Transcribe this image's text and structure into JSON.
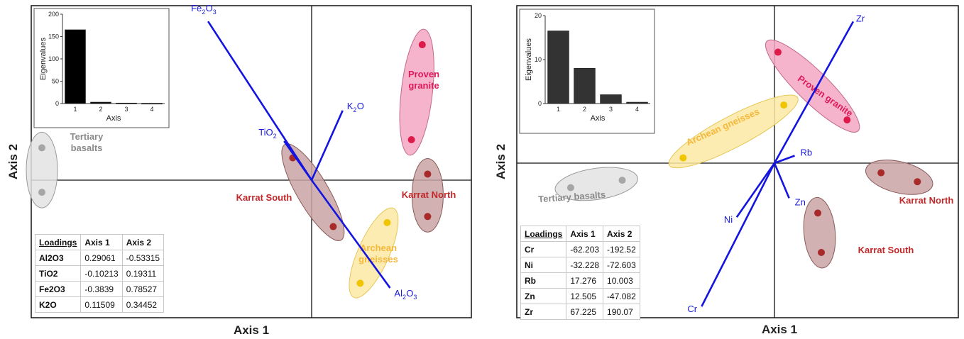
{
  "chart_data": [
    {
      "type": "scatter",
      "xlabel": "Axis 1",
      "ylabel": "Axis 2",
      "grid": false,
      "inset": {
        "type": "bar",
        "ylabel": "Eigenvalues",
        "xlabel": "Axis",
        "categories": [
          "1",
          "2",
          "3",
          "4"
        ],
        "values": [
          165,
          3,
          1,
          0.5
        ],
        "ylim": [
          0,
          200
        ],
        "yticks": [
          "0",
          "50",
          "100",
          "150",
          "200"
        ],
        "color": "#000000"
      },
      "vectors": [
        {
          "label": "Fe",
          "sub": "2",
          "label2": "O",
          "sub2": "3",
          "x": -0.3839,
          "y": 0.78527
        },
        {
          "label": "K",
          "sub": "2",
          "label2": "O",
          "sub2": "",
          "x": 0.11509,
          "y": 0.34452
        },
        {
          "label": "TiO",
          "sub": "2",
          "label2": "",
          "sub2": "",
          "x": -0.10213,
          "y": 0.19311
        },
        {
          "label": "Al",
          "sub": "2",
          "label2": "O",
          "sub2": "3",
          "x": 0.29061,
          "y": -0.53315
        }
      ],
      "groups": [
        {
          "name": "Tertiary basalts",
          "lines": [
            "Tertiary",
            "basalts"
          ],
          "fill": "#e3e3e3",
          "stroke": "#9a9a9a",
          "point": "#a6a6a6",
          "text": "#8a8a8a",
          "points": [
            [
              -1.0,
              0.16
            ],
            [
              -1.0,
              -0.06
            ]
          ]
        },
        {
          "name": "Karrat South",
          "lines": [
            "Karrat South"
          ],
          "fill": "#c9a3a3",
          "stroke": "#8a5a5a",
          "point": "#a82a2a",
          "text": "#c0282a",
          "points": [
            [
              -0.07,
              0.11
            ],
            [
              0.08,
              -0.23
            ]
          ]
        },
        {
          "name": "Proven granite",
          "lines": [
            "Proven",
            "granite"
          ],
          "fill": "#f4a6c3",
          "stroke": "#c06a8a",
          "point": "#dd1a4a",
          "text": "#dd1a5a",
          "points": [
            [
              0.41,
              0.67
            ],
            [
              0.37,
              0.2
            ]
          ]
        },
        {
          "name": "Karrat North",
          "lines": [
            "Karrat North"
          ],
          "fill": "#c9a3a3",
          "stroke": "#8a5a5a",
          "point": "#a82a2a",
          "text": "#c0282a",
          "points": [
            [
              0.43,
              0.03
            ],
            [
              0.43,
              -0.18
            ]
          ]
        },
        {
          "name": "Archean gneisses",
          "lines": [
            "Archean",
            "gneisses"
          ],
          "fill": "#fde9a3",
          "stroke": "#e5c85a",
          "point": "#f0c400",
          "text": "#f5b83a",
          "points": [
            [
              0.28,
              -0.21
            ],
            [
              0.18,
              -0.51
            ]
          ]
        }
      ],
      "loadings": {
        "header": [
          "Loadings",
          "Axis 1",
          "Axis 2"
        ],
        "rows": [
          [
            "Al2O3",
            "0.29061",
            "-0.53315"
          ],
          [
            "TiO2",
            "-0.10213",
            "0.19311"
          ],
          [
            "Fe2O3",
            "-0.3839",
            "0.78527"
          ],
          [
            "K2O",
            "0.11509",
            "0.34452"
          ]
        ]
      }
    },
    {
      "type": "scatter",
      "xlabel": "Axis 1",
      "ylabel": "Axis 2",
      "grid": false,
      "inset": {
        "type": "bar",
        "ylabel": "Eigenvalues",
        "xlabel": "Axis",
        "categories": [
          "1",
          "2",
          "3",
          "4"
        ],
        "values": [
          16.5,
          8,
          2,
          0.3
        ],
        "ylim": [
          0,
          20
        ],
        "yticks": [
          "0",
          "10",
          "20"
        ],
        "color": "#333333"
      },
      "vectors": [
        {
          "label": "Zr",
          "sub": "",
          "label2": "",
          "sub2": "",
          "x": 67.225,
          "y": 190.07
        },
        {
          "label": "Rb",
          "sub": "",
          "label2": "",
          "sub2": "",
          "x": 17.276,
          "y": 10.003
        },
        {
          "label": "Zn",
          "sub": "",
          "label2": "",
          "sub2": "",
          "x": 12.505,
          "y": -47.082
        },
        {
          "label": "Ni",
          "sub": "",
          "label2": "",
          "sub2": "",
          "x": -32.228,
          "y": -72.603
        },
        {
          "label": "Cr",
          "sub": "",
          "label2": "",
          "sub2": "",
          "x": -62.203,
          "y": -192.52
        }
      ],
      "groups": [
        {
          "name": "Tertiary basalts",
          "lines": [
            "Tertiary basalts"
          ],
          "fill": "#e3e3e3",
          "stroke": "#9a9a9a",
          "point": "#a6a6a6",
          "text": "#8a8a8a",
          "angle": -4,
          "points": [
            [
              -174,
              -33
            ],
            [
              -130,
              -23
            ]
          ]
        },
        {
          "name": "Archean gneisses",
          "lines": [
            "Archean gneisses"
          ],
          "fill": "#fde9a3",
          "stroke": "#e5c85a",
          "point": "#f0c400",
          "text": "#f5b83a",
          "angle": -24,
          "points": [
            [
              -78,
              7
            ],
            [
              8,
              78
            ]
          ]
        },
        {
          "name": "Proven granite",
          "lines": [
            "Proven granite"
          ],
          "fill": "#f4a6c3",
          "stroke": "#c06a8a",
          "point": "#dd1a4a",
          "text": "#dd1a5a",
          "angle": 35,
          "points": [
            [
              3,
              149
            ],
            [
              62,
              58
            ]
          ]
        },
        {
          "name": "Karrat North",
          "lines": [
            "Karrat North"
          ],
          "fill": "#c9a3a3",
          "stroke": "#8a5a5a",
          "point": "#a82a2a",
          "text": "#c0282a",
          "angle": 0,
          "points": [
            [
              91,
              -13
            ],
            [
              122,
              -25
            ]
          ]
        },
        {
          "name": "Karrat South",
          "lines": [
            "Karrat South"
          ],
          "fill": "#c9a3a3",
          "stroke": "#8a5a5a",
          "point": "#a82a2a",
          "text": "#c0282a",
          "angle": 0,
          "points": [
            [
              37,
              -67
            ],
            [
              40,
              -120
            ]
          ]
        }
      ],
      "loadings": {
        "header": [
          "Loadings",
          "Axis 1",
          "Axis 2"
        ],
        "rows": [
          [
            "Cr",
            "-62.203",
            "-192.52"
          ],
          [
            "Ni",
            "-32.228",
            "-72.603"
          ],
          [
            "Rb",
            "17.276",
            "10.003"
          ],
          [
            "Zn",
            "12.505",
            "-47.082"
          ],
          [
            "Zr",
            "67.225",
            "190.07"
          ]
        ]
      }
    }
  ]
}
